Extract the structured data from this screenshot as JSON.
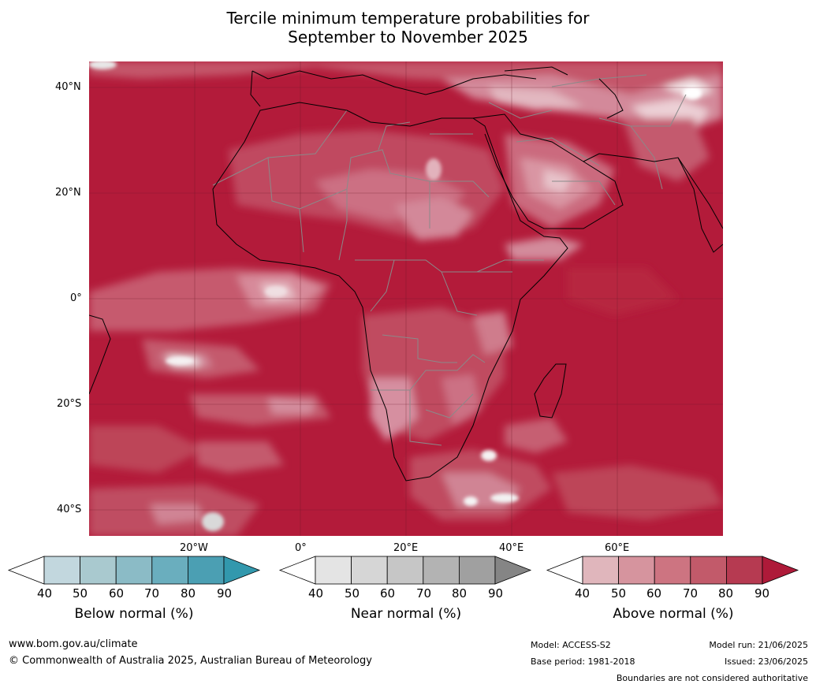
{
  "title": {
    "line1": "Tercile minimum temperature probabilities for",
    "line2": "September to November 2025"
  },
  "map": {
    "lat_labels": [
      "40°N",
      "20°N",
      "0°",
      "20°S",
      "40°S"
    ],
    "lon_labels": [
      "20°W",
      "0°",
      "20°E",
      "40°E",
      "60°E"
    ],
    "ocean_color": "#b31b3a",
    "coastline_color": "#000000",
    "boundary_color": "#808080"
  },
  "colorbars": [
    {
      "label": "Below normal (%)",
      "ticks": [
        "40",
        "50",
        "60",
        "70",
        "80",
        "90"
      ],
      "colors": [
        "#ffffff",
        "#c2d7de",
        "#a9c9cf",
        "#8bbbc6",
        "#6aaebe",
        "#4b9fb3",
        "#3298ad"
      ]
    },
    {
      "label": "Near normal (%)",
      "ticks": [
        "40",
        "50",
        "60",
        "70",
        "80",
        "90"
      ],
      "colors": [
        "#ffffff",
        "#e4e4e4",
        "#d6d6d6",
        "#c6c6c6",
        "#b3b3b3",
        "#a0a0a0",
        "#858585"
      ]
    },
    {
      "label": "Above normal (%)",
      "ticks": [
        "40",
        "50",
        "60",
        "70",
        "80",
        "90"
      ],
      "colors": [
        "#ffffff",
        "#e0b6bc",
        "#d6949e",
        "#cd7481",
        "#c25a6a",
        "#b63a51",
        "#ae1a39"
      ]
    }
  ],
  "footer": {
    "website": "www.bom.gov.au/climate",
    "copyright": "© Commonwealth of Australia 2025, Australian Bureau of Meteorology",
    "model": "Model: ACCESS-S2",
    "base_period": "Base period: 1981-2018",
    "model_run": "Model run: 21/06/2025",
    "issued": "Issued: 23/06/2025",
    "disclaimer": "Boundaries are not considered authoritative"
  }
}
